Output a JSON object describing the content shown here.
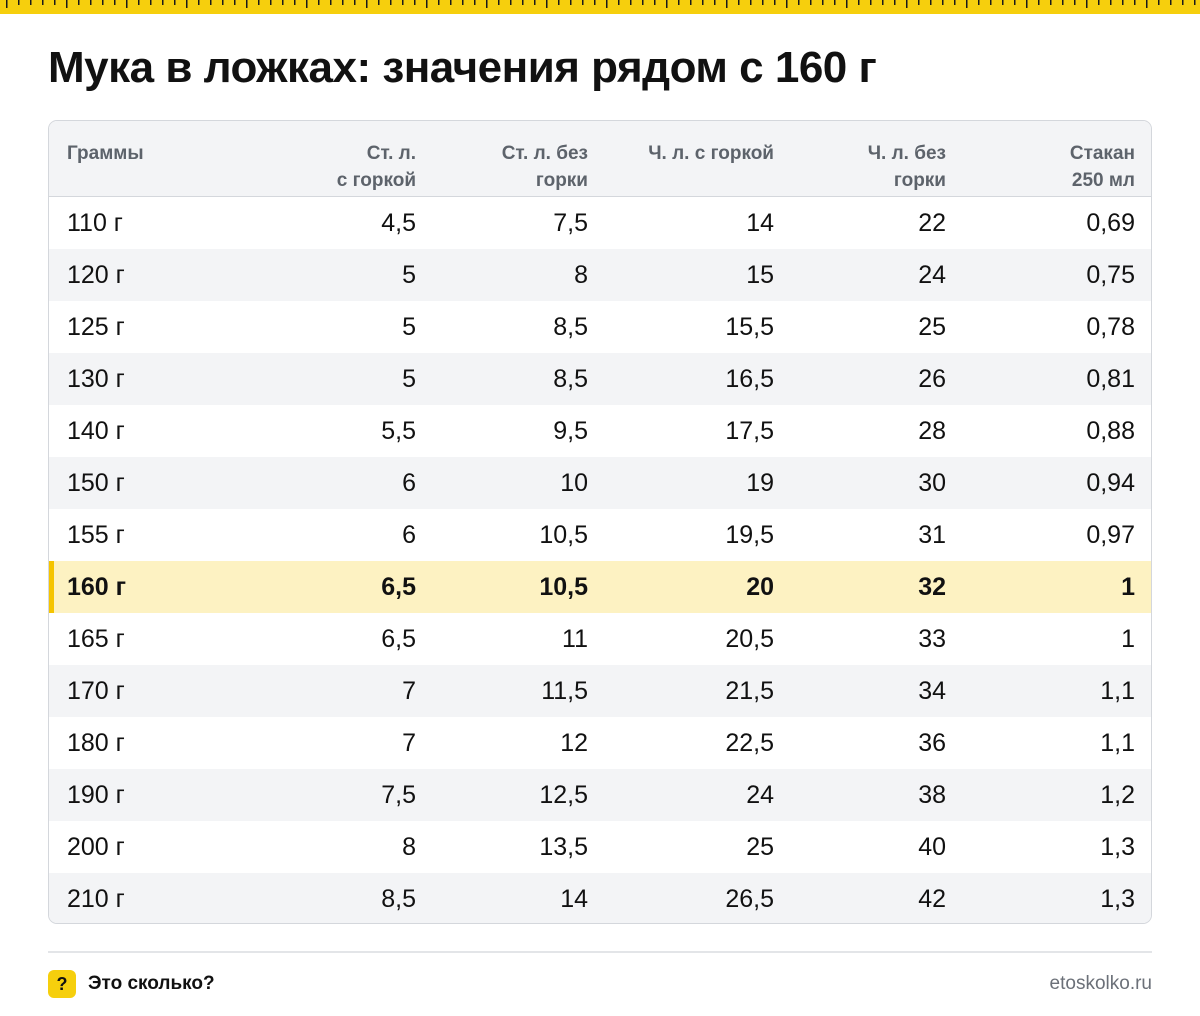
{
  "title": "Мука в ложках: значения рядом с 160 г",
  "colors": {
    "accent": "#f6cf0d",
    "highlight_row": "#fdf2c2",
    "highlight_bar": "#f5c400",
    "alt_row": "#f3f4f6",
    "header_text": "#5d636b"
  },
  "table": {
    "headers": [
      "Граммы",
      "Ст. л.\nс горкой",
      "Ст. л. без\nгорки",
      "Ч. л. с горкой",
      "Ч. л. без\nгорки",
      "Стакан\n250 мл"
    ],
    "highlight_row_index": 7,
    "rows": [
      [
        "110 г",
        "4,5",
        "7,5",
        "14",
        "22",
        "0,69"
      ],
      [
        "120 г",
        "5",
        "8",
        "15",
        "24",
        "0,75"
      ],
      [
        "125 г",
        "5",
        "8,5",
        "15,5",
        "25",
        "0,78"
      ],
      [
        "130 г",
        "5",
        "8,5",
        "16,5",
        "26",
        "0,81"
      ],
      [
        "140 г",
        "5,5",
        "9,5",
        "17,5",
        "28",
        "0,88"
      ],
      [
        "150 г",
        "6",
        "10",
        "19",
        "30",
        "0,94"
      ],
      [
        "155 г",
        "6",
        "10,5",
        "19,5",
        "31",
        "0,97"
      ],
      [
        "160 г",
        "6,5",
        "10,5",
        "20",
        "32",
        "1"
      ],
      [
        "165 г",
        "6,5",
        "11",
        "20,5",
        "33",
        "1"
      ],
      [
        "170 г",
        "7",
        "11,5",
        "21,5",
        "34",
        "1,1"
      ],
      [
        "180 г",
        "7",
        "12",
        "22,5",
        "36",
        "1,1"
      ],
      [
        "190 г",
        "7,5",
        "12,5",
        "24",
        "38",
        "1,2"
      ],
      [
        "200 г",
        "8",
        "13,5",
        "25",
        "40",
        "1,3"
      ],
      [
        "210 г",
        "8,5",
        "14",
        "26,5",
        "42",
        "1,3"
      ]
    ]
  },
  "footer": {
    "help_icon": "question-mark-icon",
    "help_glyph": "?",
    "brand": "Это сколько?",
    "site": "etoskolko.ru"
  }
}
